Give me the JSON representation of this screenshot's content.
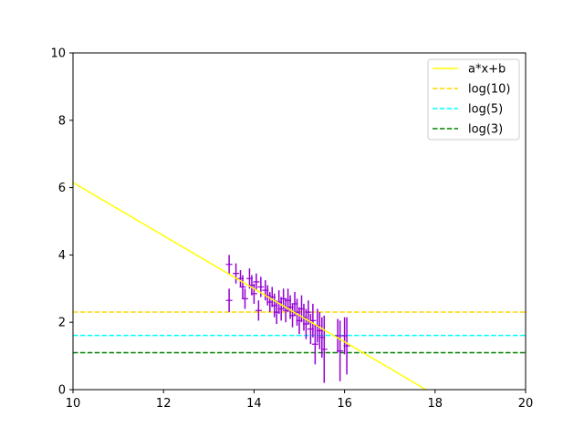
{
  "chart_data": {
    "type": "scatter",
    "title": "",
    "xlabel": "",
    "ylabel": "",
    "xlim": [
      10,
      20
    ],
    "ylim": [
      0,
      10
    ],
    "xticks": [
      "10",
      "12",
      "14",
      "16",
      "18",
      "20"
    ],
    "yticks": [
      "0",
      "2",
      "4",
      "6",
      "8",
      "10"
    ],
    "grid": false,
    "legend_position": "top-right",
    "fit_line": {
      "name": "a*x+b",
      "color": "#ffff00",
      "x": [
        10,
        17.8
      ],
      "y": [
        6.15,
        0
      ]
    },
    "reference_lines": [
      {
        "name": "log(10)",
        "y": 2.3026,
        "color": "#ffd700",
        "style": "dashed"
      },
      {
        "name": "log(5)",
        "y": 1.6094,
        "color": "#00ffff",
        "style": "dashed"
      },
      {
        "name": "log(3)",
        "y": 1.0986,
        "color": "#008000",
        "style": "dashed"
      }
    ],
    "points_color": "#9400d3",
    "points": [
      {
        "x": 13.45,
        "y": 3.72,
        "err": 0.28
      },
      {
        "x": 13.45,
        "y": 2.65,
        "err": 0.35
      },
      {
        "x": 13.6,
        "y": 3.45,
        "err": 0.3
      },
      {
        "x": 13.7,
        "y": 3.3,
        "err": 0.25
      },
      {
        "x": 13.75,
        "y": 3.05,
        "err": 0.35
      },
      {
        "x": 13.8,
        "y": 2.7,
        "err": 0.3
      },
      {
        "x": 13.9,
        "y": 3.3,
        "err": 0.3
      },
      {
        "x": 13.95,
        "y": 3.1,
        "err": 0.3
      },
      {
        "x": 14.0,
        "y": 2.85,
        "err": 0.3
      },
      {
        "x": 14.05,
        "y": 3.2,
        "err": 0.25
      },
      {
        "x": 14.1,
        "y": 2.35,
        "err": 0.3
      },
      {
        "x": 14.15,
        "y": 3.05,
        "err": 0.3
      },
      {
        "x": 14.25,
        "y": 2.95,
        "err": 0.3
      },
      {
        "x": 14.3,
        "y": 2.8,
        "err": 0.3
      },
      {
        "x": 14.35,
        "y": 2.6,
        "err": 0.3
      },
      {
        "x": 14.4,
        "y": 2.75,
        "err": 0.3
      },
      {
        "x": 14.45,
        "y": 2.5,
        "err": 0.35
      },
      {
        "x": 14.5,
        "y": 2.3,
        "err": 0.35
      },
      {
        "x": 14.55,
        "y": 2.6,
        "err": 0.35
      },
      {
        "x": 14.6,
        "y": 2.4,
        "err": 0.35
      },
      {
        "x": 14.65,
        "y": 2.7,
        "err": 0.3
      },
      {
        "x": 14.7,
        "y": 2.35,
        "err": 0.35
      },
      {
        "x": 14.75,
        "y": 2.65,
        "err": 0.35
      },
      {
        "x": 14.8,
        "y": 2.45,
        "err": 0.35
      },
      {
        "x": 14.85,
        "y": 2.2,
        "err": 0.35
      },
      {
        "x": 14.9,
        "y": 2.55,
        "err": 0.35
      },
      {
        "x": 14.95,
        "y": 2.3,
        "err": 0.4
      },
      {
        "x": 15.0,
        "y": 2.05,
        "err": 0.4
      },
      {
        "x": 15.05,
        "y": 2.4,
        "err": 0.4
      },
      {
        "x": 15.1,
        "y": 2.15,
        "err": 0.4
      },
      {
        "x": 15.15,
        "y": 1.95,
        "err": 0.45
      },
      {
        "x": 15.2,
        "y": 2.3,
        "err": 0.35
      },
      {
        "x": 15.25,
        "y": 1.8,
        "err": 0.45
      },
      {
        "x": 15.3,
        "y": 2.05,
        "err": 0.5
      },
      {
        "x": 15.35,
        "y": 1.35,
        "err": 0.6
      },
      {
        "x": 15.4,
        "y": 1.9,
        "err": 0.5
      },
      {
        "x": 15.45,
        "y": 1.75,
        "err": 0.55
      },
      {
        "x": 15.5,
        "y": 1.55,
        "err": 0.6
      },
      {
        "x": 15.55,
        "y": 1.2,
        "err": 1.0
      },
      {
        "x": 15.85,
        "y": 1.6,
        "err": 0.5
      },
      {
        "x": 15.9,
        "y": 1.15,
        "err": 0.9
      },
      {
        "x": 16.0,
        "y": 1.6,
        "err": 0.55
      },
      {
        "x": 16.05,
        "y": 1.3,
        "err": 0.85
      }
    ]
  }
}
